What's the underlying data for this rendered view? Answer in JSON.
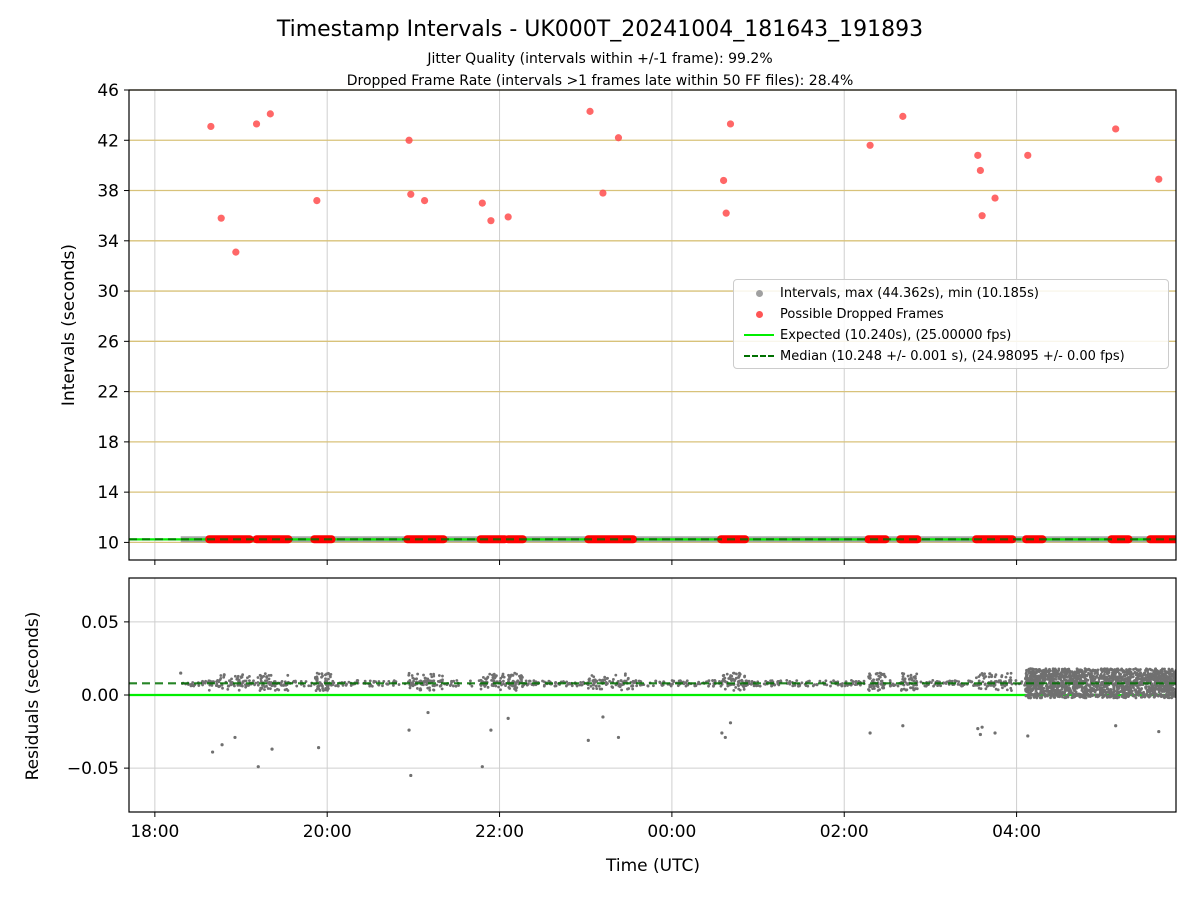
{
  "chart_data": [
    {
      "type": "scatter",
      "title": "Timestamp Intervals - UK000T_20241004_181643_191893",
      "subtitle_lines": [
        "Jitter Quality (intervals within +/-1 frame): 99.2%",
        "Dropped Frame Rate (intervals >1 frames late within 50 FF files): 28.4%"
      ],
      "xlabel": "",
      "ylabel": "Intervals (seconds)",
      "x_axis_unit": "hours since 18:00 UTC on the first day",
      "xlim": [
        -0.3,
        11.85
      ],
      "ylim": [
        8.6,
        46.0
      ],
      "yticks": [
        10,
        14,
        18,
        22,
        26,
        30,
        34,
        38,
        42,
        46
      ],
      "ytick_labels": [
        "10",
        "14",
        "18",
        "22",
        "26",
        "30",
        "34",
        "38",
        "42",
        "46"
      ],
      "xticks": [
        0,
        2,
        4,
        6,
        8,
        10
      ],
      "grid": "on",
      "legend_placement": "center-right",
      "legend": [
        {
          "label": "Intervals, max (44.362s), min (10.185s)",
          "marker": "dot",
          "color": "#8c8c8c"
        },
        {
          "label": "Possible Dropped Frames",
          "marker": "dot",
          "color": "#ff4c4c"
        },
        {
          "label": "Expected (10.240s), (25.00000 fps)",
          "marker": "line",
          "color": "#00ee00"
        },
        {
          "label": "Median (10.248 +/- 0.001 s), (24.98095 +/- 0.00 fps)",
          "marker": "dashed-line",
          "color": "#007000"
        }
      ],
      "series": [
        {
          "name": "Intervals, max (44.362s), min (10.185s)",
          "color": "#8c8c8c",
          "x_range": [
            0.3,
            11.85
          ],
          "y": 10.248
        },
        {
          "name": "Possible Dropped Frames",
          "color": "#ff4c4c",
          "x": [
            0.65,
            0.77,
            0.94,
            1.18,
            1.34,
            1.88,
            2.95,
            2.97,
            3.13,
            3.8,
            3.9,
            4.1,
            5.05,
            5.2,
            5.38,
            6.6,
            6.63,
            6.68,
            8.3,
            8.68,
            9.55,
            9.58,
            9.6,
            9.75,
            10.13,
            11.15,
            11.65
          ],
          "y": [
            43.1,
            35.8,
            33.1,
            43.3,
            44.1,
            37.2,
            42.0,
            37.7,
            37.2,
            37.0,
            35.6,
            35.9,
            44.3,
            37.8,
            42.2,
            38.8,
            36.2,
            43.3,
            41.6,
            43.9,
            40.8,
            39.6,
            36.0,
            37.4,
            40.8,
            42.9,
            38.9
          ]
        },
        {
          "name": "Possible Dropped Frames (near baseline)",
          "color": "#ff0000",
          "x_ranges": [
            [
              0.63,
              1.1
            ],
            [
              1.18,
              1.55
            ],
            [
              1.85,
              2.05
            ],
            [
              2.93,
              3.35
            ],
            [
              3.78,
              4.06
            ],
            [
              4.1,
              4.27
            ],
            [
              5.03,
              5.55
            ],
            [
              6.57,
              6.85
            ],
            [
              8.28,
              8.48
            ],
            [
              8.65,
              8.85
            ],
            [
              9.53,
              9.95
            ],
            [
              10.11,
              10.3
            ],
            [
              11.1,
              11.3
            ],
            [
              11.55,
              11.85
            ]
          ],
          "y": 10.25
        },
        {
          "name": "Expected (10.240s), (25.00000 fps)",
          "type": "hline",
          "y": 10.24,
          "color": "#00ee00"
        },
        {
          "name": "Median (10.248 +/- 0.001 s), (24.98095 +/- 0.00 fps)",
          "type": "hline",
          "y": 10.248,
          "color": "#007000"
        }
      ]
    },
    {
      "type": "scatter",
      "title": "",
      "xlabel": "Time (UTC)",
      "ylabel": "Residuals (seconds)",
      "x_axis_unit": "hours since 18:00 UTC on the first day",
      "xlim": [
        -0.3,
        11.85
      ],
      "ylim": [
        -0.08,
        0.08
      ],
      "yticks": [
        -0.05,
        0.0,
        0.05
      ],
      "ytick_labels": [
        "−0.05",
        "0.00",
        "0.05"
      ],
      "xticks": [
        0,
        2,
        4,
        6,
        8,
        10
      ],
      "xtick_labels": [
        "18:00",
        "20:00",
        "22:00",
        "00:00",
        "02:00",
        "04:00"
      ],
      "grid": "on",
      "series": [
        {
          "name": "Residuals",
          "color": "#707070",
          "x_range": [
            0.3,
            11.85
          ],
          "y_band": [
            -0.002,
            0.018
          ],
          "dense_x_range": [
            10.1,
            11.85
          ]
        },
        {
          "name": "Residual outliers",
          "color": "#707070",
          "x": [
            0.3,
            0.67,
            0.78,
            0.93,
            1.2,
            1.36,
            1.9,
            2.95,
            2.97,
            3.17,
            3.8,
            3.9,
            4.1,
            5.03,
            5.2,
            5.38,
            6.58,
            6.62,
            6.68,
            8.3,
            8.68,
            9.55,
            9.58,
            9.6,
            9.75,
            10.13,
            11.15,
            11.65
          ],
          "y": [
            0.015,
            -0.039,
            -0.034,
            -0.029,
            -0.049,
            -0.037,
            -0.036,
            -0.024,
            -0.055,
            -0.012,
            -0.049,
            -0.024,
            -0.016,
            -0.031,
            -0.015,
            -0.029,
            -0.026,
            -0.029,
            -0.019,
            -0.026,
            -0.021,
            -0.023,
            -0.027,
            -0.022,
            -0.026,
            -0.028,
            -0.021,
            -0.025
          ]
        },
        {
          "name": "Expected",
          "type": "hline",
          "y": 0.0,
          "color": "#00ee00"
        },
        {
          "name": "Median",
          "type": "hline",
          "y": 0.008,
          "color": "#007000"
        }
      ]
    }
  ]
}
